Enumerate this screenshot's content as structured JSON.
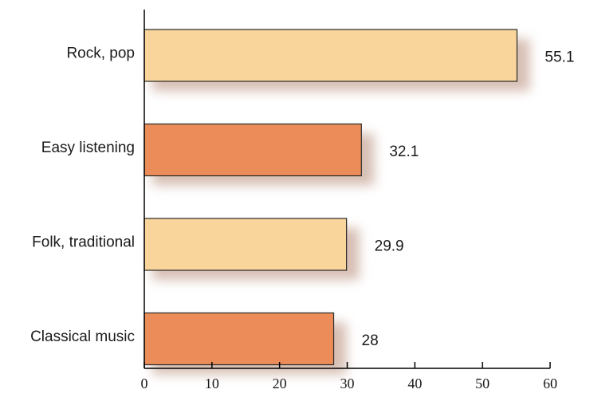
{
  "chart_data": {
    "type": "bar",
    "orientation": "horizontal",
    "categories": [
      "Rock, pop",
      "Easy listening",
      "Folk, traditional",
      "Classical music"
    ],
    "values": [
      55.1,
      32.1,
      29.9,
      28
    ],
    "value_labels": [
      "55.1",
      "32.1",
      "29.9",
      "28"
    ],
    "xlim": [
      0,
      60
    ],
    "x_ticks": [
      "0",
      "10",
      "20",
      "30",
      "40",
      "50",
      "60"
    ],
    "title": "",
    "xlabel": "",
    "ylabel": "",
    "grid": false,
    "legend": "none",
    "colors": [
      "#f9d59b",
      "#ec8d59",
      "#f9d59b",
      "#ec8d59"
    ],
    "shadow_color": "#c9a99a"
  }
}
